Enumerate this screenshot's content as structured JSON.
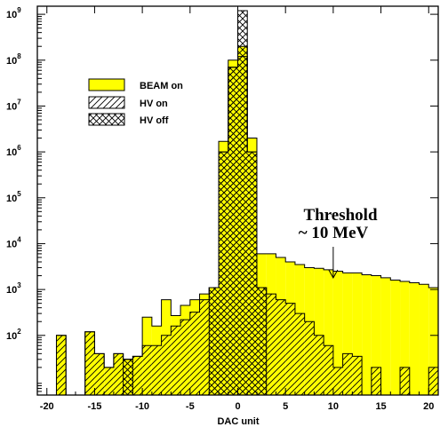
{
  "chart_data": {
    "type": "histogram",
    "xlabel": "DAC unit",
    "ylabel": "",
    "yscale": "log",
    "xlim": [
      -21,
      21
    ],
    "ylim": [
      5,
      1500000000
    ],
    "bin_width": 1,
    "x_ticks": [
      -20,
      -15,
      -10,
      -5,
      0,
      5,
      10,
      15,
      20
    ],
    "y_ticks": [
      {
        "value": 100,
        "mantissa": "10",
        "exp": "2"
      },
      {
        "value": 1000,
        "mantissa": "10",
        "exp": "3"
      },
      {
        "value": 10000,
        "mantissa": "10",
        "exp": "4"
      },
      {
        "value": 100000,
        "mantissa": "10",
        "exp": "5"
      },
      {
        "value": 1000000,
        "mantissa": "10",
        "exp": "6"
      },
      {
        "value": 10000000,
        "mantissa": "10",
        "exp": "7"
      },
      {
        "value": 100000000,
        "mantissa": "10",
        "exp": "8"
      },
      {
        "value": 1000000000,
        "mantissa": "10",
        "exp": "9"
      }
    ],
    "annotation": {
      "line1": "Threshold",
      "line2": "~ 10 MeV",
      "points_to_x": 10
    },
    "legend": {
      "placement": "upper-left",
      "entries": [
        {
          "label": "BEAM on",
          "style": "fill",
          "color": "#ffff00"
        },
        {
          "label": "HV on",
          "style": "hatch"
        },
        {
          "label": "HV off",
          "style": "crosshatch"
        }
      ]
    },
    "series": [
      {
        "name": "BEAM on",
        "style": "fill",
        "color": "#ffff00",
        "bins": [
          [
            -18.5,
            100
          ],
          [
            -17.5,
            5
          ],
          [
            -16.5,
            5
          ],
          [
            -15.5,
            120
          ],
          [
            -14.5,
            40
          ],
          [
            -13.5,
            20
          ],
          [
            -12.5,
            40
          ],
          [
            -11.5,
            30
          ],
          [
            -10.5,
            35
          ],
          [
            -9.5,
            250
          ],
          [
            -8.5,
            160
          ],
          [
            -7.5,
            600
          ],
          [
            -6.5,
            270
          ],
          [
            -5.5,
            450
          ],
          [
            -4.5,
            600
          ],
          [
            -3.5,
            800
          ],
          [
            -2.5,
            1100
          ],
          [
            -1.5,
            1700000
          ],
          [
            -0.5,
            100000000
          ],
          [
            0.5,
            200000000
          ],
          [
            1.5,
            2000000
          ],
          [
            2.5,
            6000
          ],
          [
            3.5,
            6000
          ],
          [
            4.5,
            5000
          ],
          [
            5.5,
            4000
          ],
          [
            6.5,
            3500
          ],
          [
            7.5,
            3000
          ],
          [
            8.5,
            2900
          ],
          [
            9.5,
            2700
          ],
          [
            10.5,
            2500
          ],
          [
            11.5,
            2300
          ],
          [
            12.5,
            2300
          ],
          [
            13.5,
            2100
          ],
          [
            14.5,
            2000
          ],
          [
            15.5,
            1800
          ],
          [
            16.5,
            1600
          ],
          [
            17.5,
            1500
          ],
          [
            18.5,
            1400
          ],
          [
            19.5,
            1300
          ],
          [
            20.5,
            1100
          ]
        ]
      },
      {
        "name": "HV on",
        "style": "hatch",
        "bins": [
          [
            -18.5,
            100
          ],
          [
            -17.5,
            5
          ],
          [
            -16.5,
            5
          ],
          [
            -15.5,
            120
          ],
          [
            -14.5,
            40
          ],
          [
            -13.5,
            20
          ],
          [
            -12.5,
            40
          ],
          [
            -11.5,
            30
          ],
          [
            -10.5,
            35
          ],
          [
            -9.5,
            60
          ],
          [
            -8.5,
            60
          ],
          [
            -7.5,
            100
          ],
          [
            -6.5,
            160
          ],
          [
            -5.5,
            220
          ],
          [
            -4.5,
            320
          ],
          [
            -3.5,
            600
          ],
          [
            -2.5,
            1100
          ],
          [
            -1.5,
            1000000
          ],
          [
            -0.5,
            70000000
          ],
          [
            0.5,
            120000000
          ],
          [
            1.5,
            1000000
          ],
          [
            2.5,
            1100
          ],
          [
            3.5,
            800
          ],
          [
            4.5,
            600
          ],
          [
            5.5,
            500
          ],
          [
            6.5,
            300
          ],
          [
            7.5,
            200
          ],
          [
            8.5,
            100
          ],
          [
            9.5,
            60
          ],
          [
            10.5,
            20
          ],
          [
            11.5,
            40
          ],
          [
            12.5,
            35
          ],
          [
            13.5,
            5
          ],
          [
            14.5,
            20
          ],
          [
            15.5,
            5
          ],
          [
            16.5,
            5
          ],
          [
            17.5,
            20
          ],
          [
            18.5,
            5
          ],
          [
            19.5,
            5
          ],
          [
            20.5,
            20
          ]
        ]
      },
      {
        "name": "HV off",
        "style": "crosshatch",
        "bins": [
          [
            -11.5,
            30
          ],
          [
            -2.5,
            1100
          ],
          [
            -1.5,
            1000000
          ],
          [
            -0.5,
            70000000
          ],
          [
            0.5,
            1200000000
          ],
          [
            1.5,
            1000000
          ],
          [
            2.5,
            1100
          ]
        ]
      }
    ]
  }
}
